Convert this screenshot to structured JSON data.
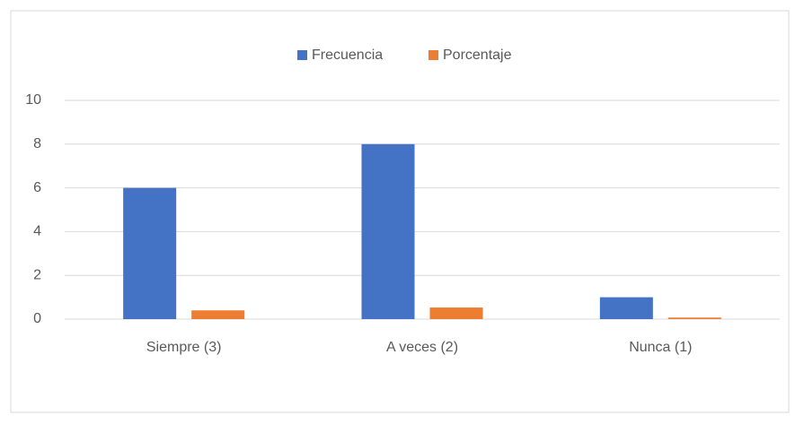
{
  "chart_data": {
    "type": "bar",
    "categories": [
      "Siempre (3)",
      "A veces (2)",
      "Nunca (1)"
    ],
    "series": [
      {
        "name": "Frecuencia",
        "color": "#4472c4",
        "values": [
          6,
          8,
          1
        ]
      },
      {
        "name": "Porcentaje",
        "color": "#ed7d31",
        "values": [
          0.4,
          0.53,
          0.07
        ]
      }
    ],
    "ylim": [
      0,
      10
    ],
    "yticks": [
      0,
      2,
      4,
      6,
      8,
      10
    ],
    "grid": true,
    "legend": "top"
  }
}
